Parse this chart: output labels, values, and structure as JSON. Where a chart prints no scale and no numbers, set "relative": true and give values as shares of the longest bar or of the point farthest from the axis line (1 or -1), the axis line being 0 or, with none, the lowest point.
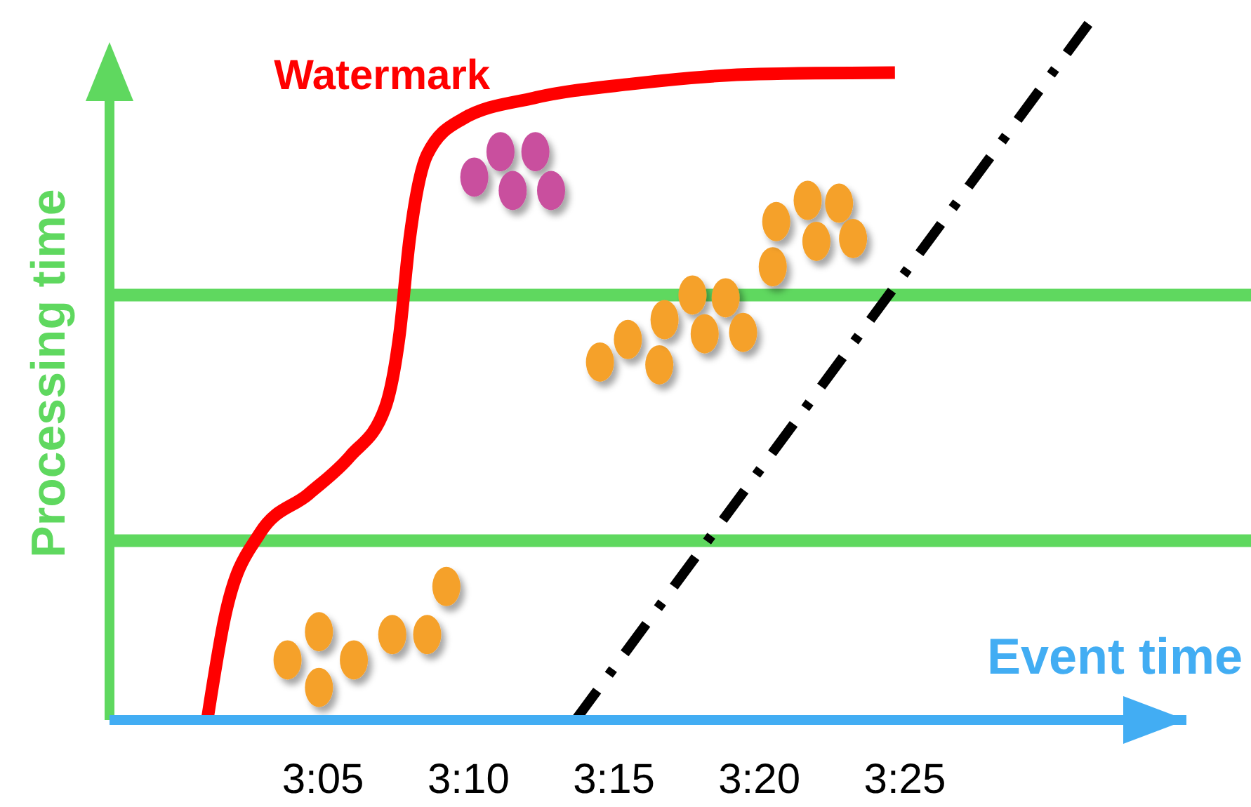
{
  "chart_data": {
    "type": "scatter",
    "relative": true,
    "xlabel": "Event time",
    "ylabel": "Processing time",
    "xlim": [
      2.961,
      3.578
    ],
    "xticks": [
      {
        "value": 3.0833,
        "label": "3:05"
      },
      {
        "value": 3.1667,
        "label": "3:10"
      },
      {
        "value": 3.25,
        "label": "3:15"
      },
      {
        "value": 3.3333,
        "label": "3:20"
      },
      {
        "value": 3.4167,
        "label": "3:25"
      }
    ],
    "ref_lines": [
      {
        "axis": "y",
        "value": 0.602,
        "color": "#5fd85f"
      },
      {
        "axis": "y",
        "value": 0.254,
        "color": "#5fd85f"
      }
    ],
    "series": [
      {
        "color": "#f5a12c",
        "marker": "circle",
        "x": [
          3.063,
          3.081,
          3.081,
          3.101,
          3.123,
          3.143,
          3.154
        ],
        "values": [
          0.085,
          0.125,
          0.046,
          0.085,
          0.121,
          0.121,
          0.189
        ]
      },
      {
        "color": "#f5a12c",
        "marker": "circle",
        "x": [
          3.242,
          3.258,
          3.276,
          3.279,
          3.295,
          3.302,
          3.314,
          3.324,
          3.341,
          3.343,
          3.361,
          3.366,
          3.379,
          3.387
        ],
        "values": [
          0.507,
          0.539,
          0.503,
          0.567,
          0.602,
          0.547,
          0.598,
          0.549,
          0.642,
          0.706,
          0.736,
          0.678,
          0.732,
          0.682
        ]
      },
      {
        "color": "#c9509e",
        "marker": "circle",
        "x": [
          3.17,
          3.185,
          3.192,
          3.205,
          3.214
        ],
        "values": [
          0.769,
          0.805,
          0.75,
          0.805,
          0.75
        ]
      },
      {
        "type": "line",
        "name": "Watermark",
        "color": "#ff0000",
        "line_style": "solid",
        "x": [
          3.017,
          3.027,
          3.047,
          3.075,
          3.099,
          3.119,
          3.127,
          3.133,
          3.143,
          3.163,
          3.204,
          3.26,
          3.333,
          3.411
        ],
        "values": [
          0,
          0.145,
          0.264,
          0.32,
          0.374,
          0.443,
          0.543,
          0.682,
          0.801,
          0.851,
          0.881,
          0.901,
          0.915,
          0.917
        ]
      },
      {
        "type": "line",
        "color": "#000000",
        "line_style": "dashed",
        "x": [
          3.228,
          3.526
        ],
        "values": [
          0,
          1
        ]
      }
    ]
  }
}
